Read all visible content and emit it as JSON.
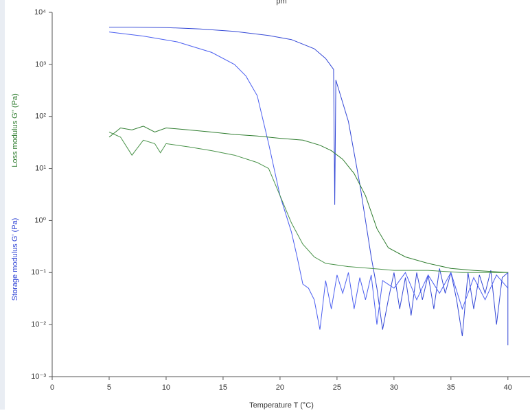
{
  "chart_data": {
    "type": "line",
    "title": "pm",
    "xlabel": "Temperature  T  (°C)",
    "ylabel": "Storage modulus  G'  (Pa)",
    "ylabel2": "Loss modulus  G''  (Pa)",
    "xlim": [
      0,
      42
    ],
    "xticks": [
      0,
      5,
      10,
      15,
      20,
      25,
      30,
      35,
      40
    ],
    "ylim": [
      0.001,
      10000
    ],
    "log_y": true,
    "yticks": [
      {
        "value": 0.001,
        "label": "10⁻³"
      },
      {
        "value": 0.01,
        "label": "10⁻²"
      },
      {
        "value": 0.1,
        "label": "10⁻¹"
      },
      {
        "value": 1,
        "label": "10⁰"
      },
      {
        "value": 10,
        "label": "10¹"
      },
      {
        "value": 100,
        "label": "10²"
      },
      {
        "value": 1000,
        "label": "10³"
      },
      {
        "value": 10000,
        "label": "10⁴"
      }
    ],
    "series": [
      {
        "color": "#3347d6",
        "x": [
          5,
          7,
          10,
          13,
          16,
          19,
          21,
          23,
          24,
          24.7,
          24.8,
          24.9,
          26,
          27,
          27.5,
          28,
          28.5,
          29,
          29.5,
          30,
          30.5,
          31,
          31.5,
          32,
          32.5,
          33,
          33.5,
          34,
          34.5,
          35,
          35.5,
          36,
          36.5,
          37,
          37.5,
          38,
          38.5,
          39,
          39.5,
          40,
          40
        ],
        "values": [
          5200,
          5200,
          5100,
          4800,
          4300,
          3600,
          3000,
          2000,
          1300,
          800,
          2,
          500,
          80,
          5,
          1,
          0.2,
          0.05,
          0.008,
          0.03,
          0.1,
          0.02,
          0.08,
          0.015,
          0.1,
          0.03,
          0.09,
          0.02,
          0.12,
          0.04,
          0.1,
          0.03,
          0.006,
          0.1,
          0.02,
          0.09,
          0.04,
          0.11,
          0.01,
          0.08,
          0.1,
          0.004
        ]
      },
      {
        "color": "#4a5ef0",
        "x": [
          5,
          8,
          11,
          14,
          16,
          17,
          18,
          19,
          20,
          21,
          21.5,
          22,
          22.5,
          23,
          23.5,
          24,
          24.5,
          25,
          25.5,
          26,
          26.5,
          27,
          27.5,
          28,
          28.5,
          29,
          30,
          31,
          32,
          33,
          34,
          35,
          36,
          37,
          38,
          39,
          40
        ],
        "values": [
          4200,
          3500,
          2700,
          1700,
          1000,
          600,
          250,
          30,
          3,
          0.6,
          0.2,
          0.06,
          0.05,
          0.03,
          0.008,
          0.07,
          0.02,
          0.09,
          0.04,
          0.1,
          0.02,
          0.08,
          0.03,
          0.09,
          0.01,
          0.07,
          0.05,
          0.1,
          0.03,
          0.09,
          0.04,
          0.1,
          0.02,
          0.08,
          0.03,
          0.09,
          0.05
        ]
      },
      {
        "color": "#2f7d2f",
        "x": [
          5,
          6,
          7,
          8,
          9,
          10,
          12,
          14,
          16,
          18,
          20,
          22,
          23.5,
          24.5,
          25.5,
          26.5,
          27.5,
          28.5,
          29.5,
          31,
          33,
          35,
          37,
          40
        ],
        "values": [
          40,
          60,
          55,
          65,
          50,
          60,
          55,
          50,
          45,
          42,
          38,
          35,
          28,
          22,
          15,
          8,
          3,
          0.7,
          0.3,
          0.2,
          0.15,
          0.12,
          0.11,
          0.1
        ]
      },
      {
        "color": "#4a934a",
        "x": [
          5,
          6,
          7,
          8,
          9,
          9.5,
          10,
          12,
          14,
          16,
          18,
          19,
          20,
          21,
          22,
          23,
          24,
          26,
          28,
          30,
          33,
          36,
          40
        ],
        "values": [
          50,
          40,
          18,
          35,
          30,
          20,
          30,
          26,
          22,
          18,
          13,
          10,
          3,
          0.9,
          0.35,
          0.2,
          0.15,
          0.13,
          0.12,
          0.11,
          0.11,
          0.1,
          0.1
        ]
      }
    ]
  }
}
